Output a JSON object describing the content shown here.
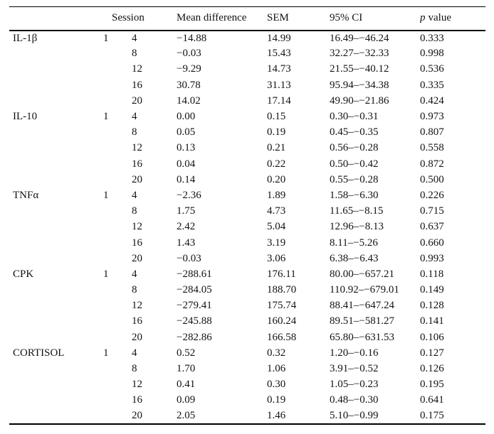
{
  "page": {
    "background": "#ffffff",
    "text_color": "#121212",
    "rule_color": "#000000"
  },
  "table": {
    "columns": [
      {
        "label": ""
      },
      {
        "label": ""
      },
      {
        "label": "Session"
      },
      {
        "label": "Mean difference"
      },
      {
        "label": "SEM"
      },
      {
        "label": "95% CI"
      },
      {
        "label_italic": "p",
        "label_rest": "value"
      }
    ],
    "rows": [
      {
        "analyte": "IL-1β",
        "group": "1",
        "session": "4",
        "mean": "−14.88",
        "sem": "14.99",
        "ci": "16.49–−46.24",
        "p": "0.333"
      },
      {
        "analyte": "",
        "group": "",
        "session": "8",
        "mean": "−0.03",
        "sem": "15.43",
        "ci": "32.27–−32.33",
        "p": "0.998"
      },
      {
        "analyte": "",
        "group": "",
        "session": "12",
        "mean": "−9.29",
        "sem": "14.73",
        "ci": "21.55–−40.12",
        "p": "0.536"
      },
      {
        "analyte": "",
        "group": "",
        "session": "16",
        "mean": "30.78",
        "sem": "31.13",
        "ci": "95.94–−34.38",
        "p": "0.335"
      },
      {
        "analyte": "",
        "group": "",
        "session": "20",
        "mean": "14.02",
        "sem": "17.14",
        "ci": "49.90–−21.86",
        "p": "0.424"
      },
      {
        "analyte": "IL-10",
        "group": "1",
        "session": "4",
        "mean": "0.00",
        "sem": "0.15",
        "ci": "0.30–−0.31",
        "p": "0.973"
      },
      {
        "analyte": "",
        "group": "",
        "session": "8",
        "mean": "0.05",
        "sem": "0.19",
        "ci": "0.45–−0.35",
        "p": "0.807"
      },
      {
        "analyte": "",
        "group": "",
        "session": "12",
        "mean": "0.13",
        "sem": "0.21",
        "ci": "0.56–−0.28",
        "p": "0.558"
      },
      {
        "analyte": "",
        "group": "",
        "session": "16",
        "mean": "0.04",
        "sem": "0.22",
        "ci": "0.50–−0.42",
        "p": "0.872"
      },
      {
        "analyte": "",
        "group": "",
        "session": "20",
        "mean": "0.14",
        "sem": "0.20",
        "ci": "0.55–−0.28",
        "p": "0.500"
      },
      {
        "analyte": "TNFα",
        "group": "1",
        "session": "4",
        "mean": "−2.36",
        "sem": "1.89",
        "ci": "1.58–−6.30",
        "p": "0.226"
      },
      {
        "analyte": "",
        "group": "",
        "session": "8",
        "mean": "1.75",
        "sem": "4.73",
        "ci": "11.65–−8.15",
        "p": "0.715"
      },
      {
        "analyte": "",
        "group": "",
        "session": "12",
        "mean": "2.42",
        "sem": "5.04",
        "ci": "12.96–−8.13",
        "p": "0.637"
      },
      {
        "analyte": "",
        "group": "",
        "session": "16",
        "mean": "1.43",
        "sem": "3.19",
        "ci": "8.11–−5.26",
        "p": "0.660"
      },
      {
        "analyte": "",
        "group": "",
        "session": "20",
        "mean": "−0.03",
        "sem": "3.06",
        "ci": "6.38–−6.43",
        "p": "0.993"
      },
      {
        "analyte": "CPK",
        "group": "1",
        "session": "4",
        "mean": "−288.61",
        "sem": "176.11",
        "ci": "80.00–−657.21",
        "p": "0.118"
      },
      {
        "analyte": "",
        "group": "",
        "session": "8",
        "mean": "−284.05",
        "sem": "188.70",
        "ci": "110.92–−679.01",
        "p": "0.149"
      },
      {
        "analyte": "",
        "group": "",
        "session": "12",
        "mean": "−279.41",
        "sem": "175.74",
        "ci": "88.41–−647.24",
        "p": "0.128"
      },
      {
        "analyte": "",
        "group": "",
        "session": "16",
        "mean": "−245.88",
        "sem": "160.24",
        "ci": "89.51–−581.27",
        "p": "0.141"
      },
      {
        "analyte": "",
        "group": "",
        "session": "20",
        "mean": "−282.86",
        "sem": "166.58",
        "ci": "65.80–−631.53",
        "p": "0.106"
      },
      {
        "analyte": "CORTISOL",
        "group": "1",
        "session": "4",
        "mean": "0.52",
        "sem": "0.32",
        "ci": "1.20–−0.16",
        "p": "0.127"
      },
      {
        "analyte": "",
        "group": "",
        "session": "8",
        "mean": "1.70",
        "sem": "1.06",
        "ci": "3.91–−0.52",
        "p": "0.126"
      },
      {
        "analyte": "",
        "group": "",
        "session": "12",
        "mean": "0.41",
        "sem": "0.30",
        "ci": "1.05–−0.23",
        "p": "0.195"
      },
      {
        "analyte": "",
        "group": "",
        "session": "16",
        "mean": "0.09",
        "sem": "0.19",
        "ci": "0.48–−0.30",
        "p": "0.641"
      },
      {
        "analyte": "",
        "group": "",
        "session": "20",
        "mean": "2.05",
        "sem": "1.46",
        "ci": "5.10–−0.99",
        "p": "0.175"
      }
    ]
  }
}
